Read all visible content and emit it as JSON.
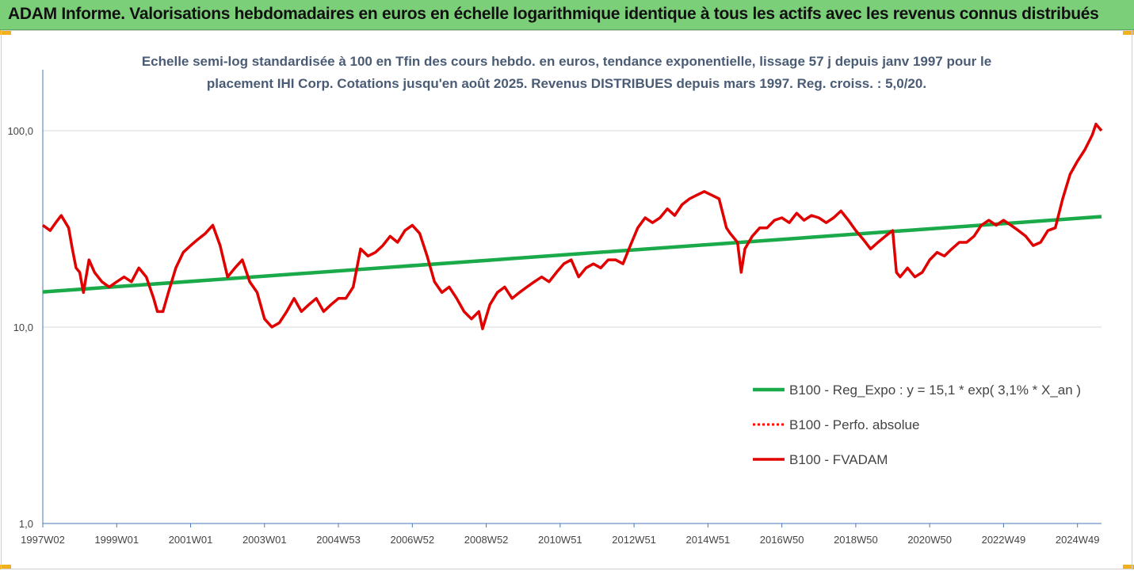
{
  "banner": {
    "title": "ADAM Informe. Valorisations hebdomadaires en euros en échelle logarithmique identique à tous les actifs avec les revenus connus distribués",
    "color": "#7ccf79"
  },
  "chart_data": {
    "type": "line",
    "title": "Echelle semi-log standardisée à 100 en Tfin des cours hebdo. en euros, tendance exponentielle, lissage 57 j depuis janv 1997 pour le placement IHI Corp. Cotations jusqu'en août 2025. Revenus DISTRIBUES depuis mars 1997. Reg. croiss. : 5,0/20.",
    "xlabel": "",
    "ylabel": "",
    "y_scale": "log",
    "ylim": [
      1,
      200
    ],
    "xlim": [
      1997.0,
      2025.65
    ],
    "y_ticks": [
      {
        "value": 1,
        "label": "1,0"
      },
      {
        "value": 10,
        "label": "10,0"
      },
      {
        "value": 100,
        "label": "100,0"
      }
    ],
    "x_ticks": [
      {
        "x": 1997.0,
        "label": "1997W02"
      },
      {
        "x": 1999.0,
        "label": "1999W01"
      },
      {
        "x": 2001.0,
        "label": "2001W01"
      },
      {
        "x": 2003.0,
        "label": "2003W01"
      },
      {
        "x": 2005.0,
        "label": "2004W53"
      },
      {
        "x": 2007.0,
        "label": "2006W52"
      },
      {
        "x": 2009.0,
        "label": "2008W52"
      },
      {
        "x": 2011.0,
        "label": "2010W51"
      },
      {
        "x": 2013.0,
        "label": "2012W51"
      },
      {
        "x": 2015.0,
        "label": "2014W51"
      },
      {
        "x": 2017.0,
        "label": "2016W50"
      },
      {
        "x": 2019.0,
        "label": "2018W50"
      },
      {
        "x": 2021.0,
        "label": "2020W50"
      },
      {
        "x": 2023.0,
        "label": "2022W49"
      },
      {
        "x": 2025.0,
        "label": "2024W49"
      }
    ],
    "grid": "horizontal",
    "legend_position": "bottom-right",
    "series": [
      {
        "name": "B100 - Reg_Expo : y = 15,1 * exp( 3,1% *  X_an )",
        "color": "#1aaa4a",
        "style": "solid",
        "x": [
          1997.0,
          2025.65
        ],
        "y": [
          15.1,
          36.5
        ]
      },
      {
        "name": "B100 - Perfo. absolue",
        "color": "#ff0000",
        "style": "dotted",
        "x": [],
        "y": []
      },
      {
        "name": "B100 - FVADAM",
        "color": "#e00000",
        "style": "solid",
        "x": [
          1997.0,
          1997.2,
          1997.35,
          1997.5,
          1997.7,
          1997.8,
          1997.9,
          1998.0,
          1998.1,
          1998.25,
          1998.4,
          1998.6,
          1998.8,
          1999.0,
          1999.2,
          1999.4,
          1999.6,
          1999.8,
          2000.0,
          2000.1,
          2000.25,
          2000.4,
          2000.6,
          2000.8,
          2001.0,
          2001.2,
          2001.4,
          2001.6,
          2001.8,
          2002.0,
          2002.2,
          2002.4,
          2002.6,
          2002.8,
          2003.0,
          2003.2,
          2003.4,
          2003.6,
          2003.8,
          2004.0,
          2004.2,
          2004.4,
          2004.6,
          2004.8,
          2005.0,
          2005.2,
          2005.4,
          2005.6,
          2005.8,
          2006.0,
          2006.2,
          2006.4,
          2006.6,
          2006.8,
          2007.0,
          2007.2,
          2007.4,
          2007.6,
          2007.8,
          2008.0,
          2008.2,
          2008.4,
          2008.6,
          2008.8,
          2008.9,
          2009.1,
          2009.3,
          2009.5,
          2009.7,
          2009.9,
          2010.1,
          2010.3,
          2010.5,
          2010.7,
          2010.9,
          2011.1,
          2011.3,
          2011.5,
          2011.7,
          2011.9,
          2012.1,
          2012.3,
          2012.5,
          2012.7,
          2012.9,
          2013.1,
          2013.3,
          2013.5,
          2013.7,
          2013.9,
          2014.1,
          2014.3,
          2014.5,
          2014.7,
          2014.9,
          2015.1,
          2015.3,
          2015.5,
          2015.6,
          2015.8,
          2015.9,
          2016.0,
          2016.2,
          2016.4,
          2016.6,
          2016.8,
          2017.0,
          2017.2,
          2017.4,
          2017.6,
          2017.8,
          2018.0,
          2018.2,
          2018.4,
          2018.6,
          2018.8,
          2019.0,
          2019.2,
          2019.4,
          2019.6,
          2019.8,
          2020.0,
          2020.1,
          2020.2,
          2020.4,
          2020.6,
          2020.8,
          2021.0,
          2021.2,
          2021.4,
          2021.6,
          2021.8,
          2022.0,
          2022.2,
          2022.4,
          2022.6,
          2022.8,
          2023.0,
          2023.2,
          2023.4,
          2023.6,
          2023.8,
          2024.0,
          2024.2,
          2024.4,
          2024.6,
          2024.8,
          2025.0,
          2025.2,
          2025.4,
          2025.5,
          2025.65
        ],
        "y": [
          33,
          31,
          34,
          37,
          32,
          25,
          20,
          19,
          15,
          22,
          19,
          17,
          16,
          17,
          18,
          17,
          20,
          18,
          14,
          12,
          12,
          15,
          20,
          24,
          26,
          28,
          30,
          33,
          26,
          18,
          20,
          22,
          17,
          15,
          11,
          10,
          10.5,
          12,
          14,
          12,
          13,
          14,
          12,
          13,
          14,
          14,
          16,
          25,
          23,
          24,
          26,
          29,
          27,
          31,
          33,
          30,
          23,
          17,
          15,
          16,
          14,
          12,
          11,
          12,
          9.8,
          13,
          15,
          16,
          14,
          15,
          16,
          17,
          18,
          17,
          19,
          21,
          22,
          18,
          20,
          21,
          20,
          22,
          22,
          21,
          26,
          32,
          36,
          34,
          36,
          40,
          37,
          42,
          45,
          47,
          49,
          47,
          45,
          32,
          30,
          27,
          19,
          25,
          29,
          32,
          32,
          35,
          36,
          34,
          38,
          35,
          37,
          36,
          34,
          36,
          39,
          35,
          31,
          28,
          25,
          27,
          29,
          31,
          19,
          18,
          20,
          18,
          19,
          22,
          24,
          23,
          25,
          27,
          27,
          29,
          33,
          35,
          33,
          35,
          33,
          31,
          29,
          26,
          27,
          31,
          32,
          45,
          60,
          70,
          80,
          95,
          108,
          100
        ]
      }
    ]
  }
}
